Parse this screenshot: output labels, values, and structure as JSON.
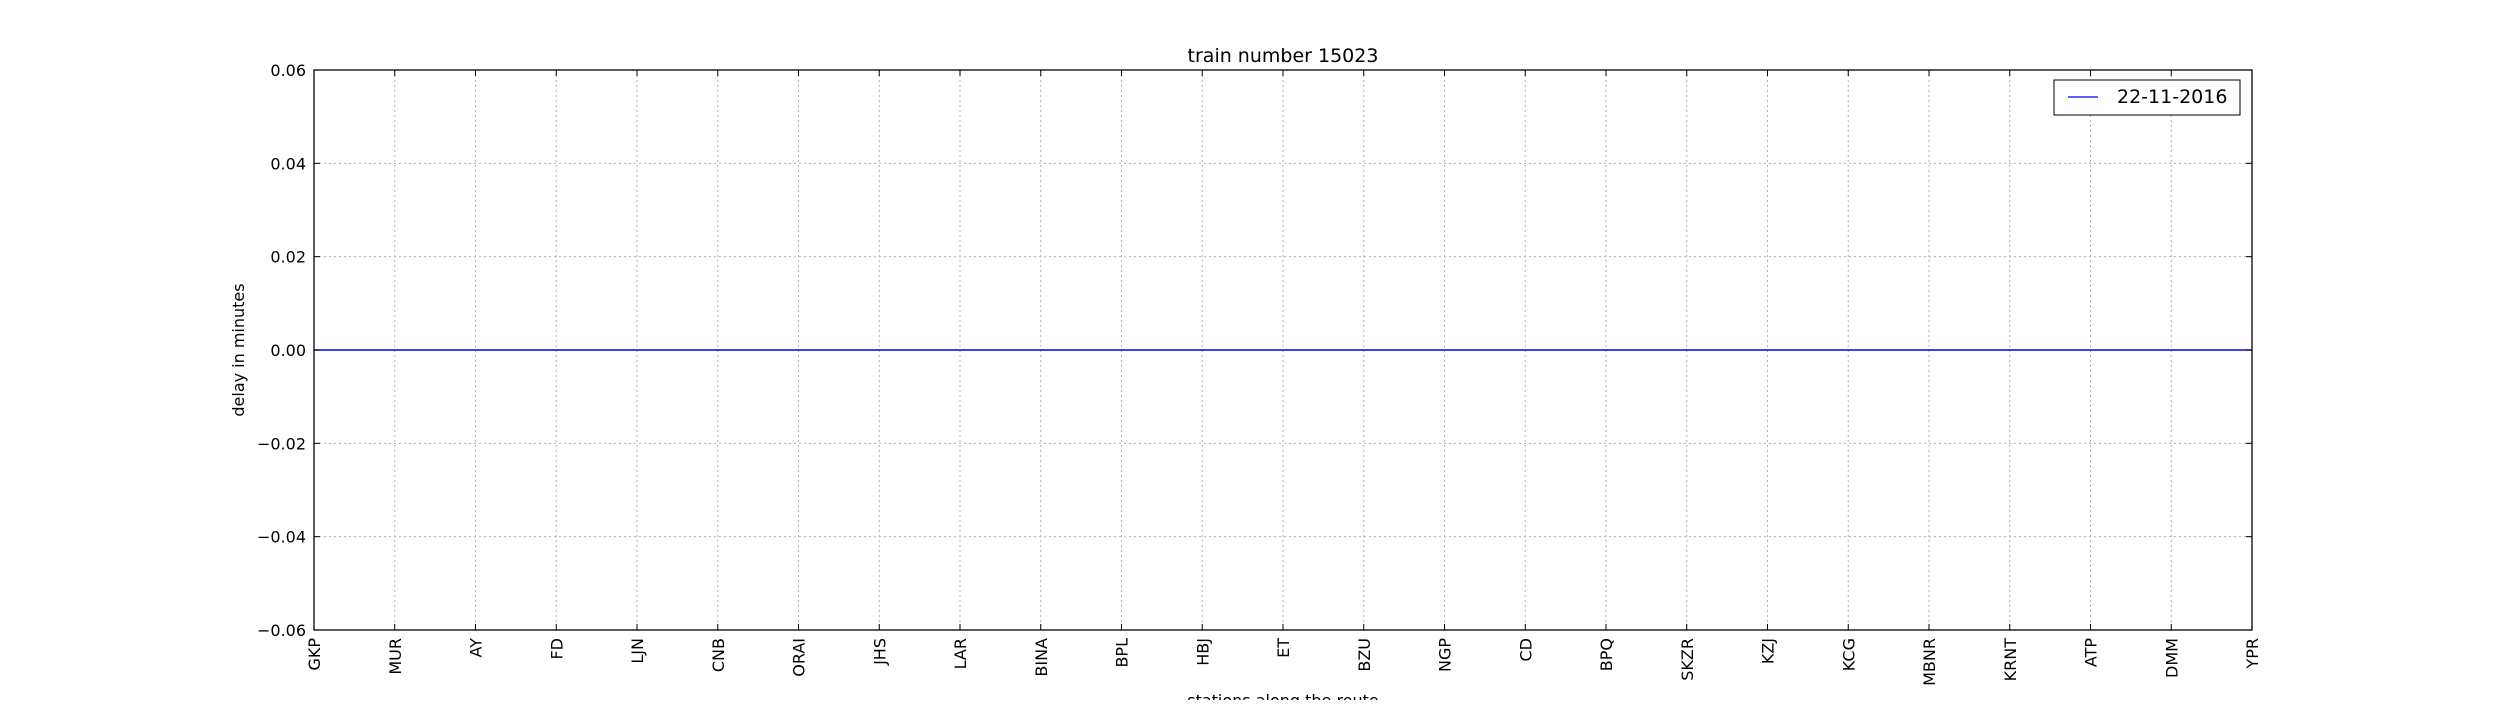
{
  "chart_data": {
    "type": "line",
    "title": "train number 15023",
    "xlabel": "stations along the route",
    "ylabel": "delay in minutes",
    "ylim": [
      -0.06,
      0.06
    ],
    "yticks": [
      0.06,
      0.04,
      0.02,
      0.0,
      -0.02,
      -0.04,
      -0.06
    ],
    "ytick_labels": [
      "0.06",
      "0.04",
      "0.02",
      "0.00",
      "−0.02",
      "−0.04",
      "−0.06"
    ],
    "grid": true,
    "legend_position": "top-right",
    "categories": [
      "GKP",
      "MUR",
      "AY",
      "FD",
      "LJN",
      "CNB",
      "ORAI",
      "JHS",
      "LAR",
      "BINA",
      "BPL",
      "HBJ",
      "ET",
      "BZU",
      "NGP",
      "CD",
      "BPQ",
      "SKZR",
      "KZJ",
      "KCG",
      "MBNR",
      "KRNT",
      "ATP",
      "DMM",
      "YPR"
    ],
    "series": [
      {
        "name": "22-11-2016",
        "color": "#0000ff",
        "values": [
          0,
          0,
          0,
          0,
          0,
          0,
          0,
          0,
          0,
          0,
          0,
          0,
          0,
          0,
          0,
          0,
          0,
          0,
          0,
          0,
          0,
          0,
          0,
          0,
          0
        ]
      }
    ]
  }
}
